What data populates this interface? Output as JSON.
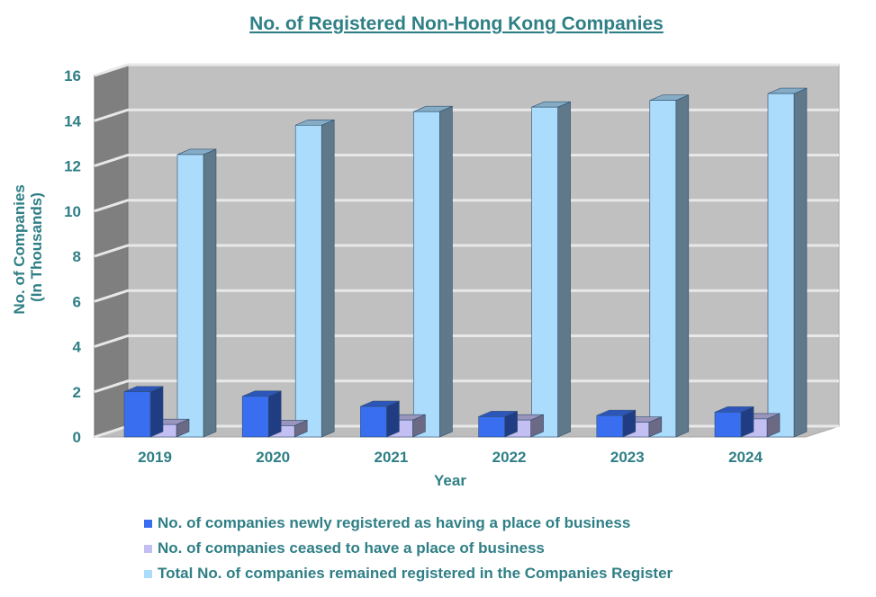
{
  "chart_data": {
    "type": "bar",
    "title": "No. of Registered Non-Hong Kong Companies",
    "xlabel": "Year",
    "ylabel": [
      "No. of Companies",
      "(In Thousands)"
    ],
    "categories": [
      "2019",
      "2020",
      "2021",
      "2022",
      "2023",
      "2024"
    ],
    "ylim": [
      0,
      16
    ],
    "yticks": [
      0,
      2,
      4,
      6,
      8,
      10,
      12,
      14,
      16
    ],
    "grid": true,
    "legend_position": "bottom",
    "series": [
      {
        "name": "No. of companies newly registered as having a place of business",
        "values": [
          2.0,
          1.8,
          1.35,
          0.9,
          0.95,
          1.1
        ],
        "color": "#3a6ef0"
      },
      {
        "name": "No. of companies ceased to have a place of business",
        "values": [
          0.55,
          0.5,
          0.75,
          0.75,
          0.65,
          0.8
        ],
        "color": "#c4bff2"
      },
      {
        "name": "Total No. of companies remained registered in the Companies Register",
        "values": [
          12.5,
          13.8,
          14.4,
          14.6,
          14.9,
          15.2
        ],
        "color": "#acdcfc"
      }
    ]
  }
}
